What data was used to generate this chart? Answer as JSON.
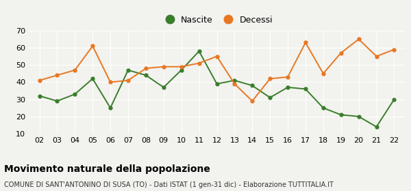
{
  "years": [
    2,
    3,
    4,
    5,
    6,
    7,
    8,
    9,
    10,
    11,
    12,
    13,
    14,
    15,
    16,
    17,
    18,
    19,
    20,
    21,
    22
  ],
  "nascite": [
    32,
    29,
    33,
    42,
    25,
    47,
    44,
    37,
    47,
    58,
    39,
    41,
    38,
    31,
    37,
    36,
    25,
    21,
    20,
    14,
    30
  ],
  "decessi": [
    41,
    44,
    47,
    61,
    40,
    41,
    48,
    49,
    49,
    51,
    55,
    39,
    29,
    42,
    43,
    63,
    45,
    57,
    65,
    55,
    59
  ],
  "nascite_color": "#3a7d2c",
  "decessi_color": "#e87722",
  "title": "Movimento naturale della popolazione",
  "subtitle": "COMUNE DI SANT'ANTONINO DI SUSA (TO) - Dati ISTAT (1 gen-31 dic) - Elaborazione TUTTITALIA.IT",
  "legend_nascite": "Nascite",
  "legend_decessi": "Decessi",
  "ylim": [
    10,
    70
  ],
  "yticks": [
    10,
    20,
    30,
    40,
    50,
    60,
    70
  ],
  "background_color": "#f2f2ee",
  "grid_color": "#ffffff",
  "marker": "o",
  "marker_size": 3.5,
  "line_width": 1.4,
  "title_fontsize": 10,
  "subtitle_fontsize": 7,
  "tick_fontsize": 8,
  "legend_fontsize": 9
}
